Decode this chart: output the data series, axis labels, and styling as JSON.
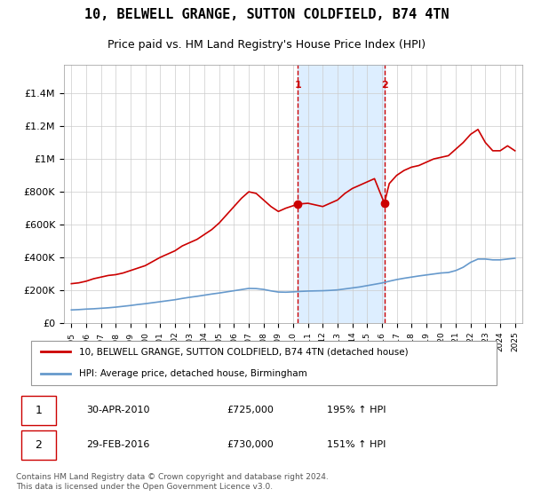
{
  "title": "10, BELWELL GRANGE, SUTTON COLDFIELD, B74 4TN",
  "subtitle": "Price paid vs. HM Land Registry's House Price Index (HPI)",
  "title_fontsize": 11,
  "subtitle_fontsize": 9,
  "background_color": "#ffffff",
  "plot_bg_color": "#ffffff",
  "grid_color": "#cccccc",
  "red_line_color": "#cc0000",
  "blue_line_color": "#6699cc",
  "highlight_bg_color": "#ddeeff",
  "dashed_line_color": "#cc0000",
  "marker1_x": 2010.33,
  "marker1_y": 725000,
  "marker2_x": 2016.17,
  "marker2_y": 730000,
  "vline1_x": 2010.33,
  "vline2_x": 2016.17,
  "ylim": [
    0,
    1500000
  ],
  "xlim": [
    1994.5,
    2025.5
  ],
  "ytick_values": [
    0,
    200000,
    400000,
    600000,
    800000,
    1000000,
    1200000,
    1400000
  ],
  "ytick_labels": [
    "£0",
    "£200K",
    "£400K",
    "£600K",
    "£800K",
    "£1M",
    "£1.2M",
    "£1.4M"
  ],
  "xtick_years": [
    1995,
    1996,
    1997,
    1998,
    1999,
    2000,
    2001,
    2002,
    2003,
    2004,
    2005,
    2006,
    2007,
    2008,
    2009,
    2010,
    2011,
    2012,
    2013,
    2014,
    2015,
    2016,
    2017,
    2018,
    2019,
    2020,
    2021,
    2022,
    2023,
    2024,
    2025
  ],
  "legend_red_label": "10, BELWELL GRANGE, SUTTON COLDFIELD, B74 4TN (detached house)",
  "legend_blue_label": "HPI: Average price, detached house, Birmingham",
  "note1_label": "1",
  "note1_date": "30-APR-2010",
  "note1_price": "£725,000",
  "note1_hpi": "195% ↑ HPI",
  "note2_label": "2",
  "note2_date": "29-FEB-2016",
  "note2_price": "£730,000",
  "note2_hpi": "151% ↑ HPI",
  "footer": "Contains HM Land Registry data © Crown copyright and database right 2024.\nThis data is licensed under the Open Government Licence v3.0.",
  "red_x": [
    1995.0,
    1995.5,
    1996.0,
    1996.5,
    1997.0,
    1997.5,
    1998.0,
    1998.5,
    1999.0,
    1999.5,
    2000.0,
    2000.5,
    2001.0,
    2001.5,
    2002.0,
    2002.5,
    2003.0,
    2003.5,
    2004.0,
    2004.5,
    2005.0,
    2005.5,
    2006.0,
    2006.5,
    2007.0,
    2007.5,
    2008.0,
    2008.5,
    2009.0,
    2009.5,
    2010.0,
    2010.33,
    2011.0,
    2011.5,
    2012.0,
    2012.5,
    2013.0,
    2013.5,
    2014.0,
    2014.5,
    2015.0,
    2015.5,
    2016.17,
    2016.5,
    2017.0,
    2017.5,
    2018.0,
    2018.5,
    2019.0,
    2019.5,
    2020.0,
    2020.5,
    2021.0,
    2021.5,
    2022.0,
    2022.5,
    2023.0,
    2023.5,
    2024.0,
    2024.5,
    2025.0
  ],
  "red_y": [
    240000,
    245000,
    255000,
    270000,
    280000,
    290000,
    295000,
    305000,
    320000,
    335000,
    350000,
    375000,
    400000,
    420000,
    440000,
    470000,
    490000,
    510000,
    540000,
    570000,
    610000,
    660000,
    710000,
    760000,
    800000,
    790000,
    750000,
    710000,
    680000,
    700000,
    715000,
    725000,
    730000,
    720000,
    710000,
    730000,
    750000,
    790000,
    820000,
    840000,
    860000,
    880000,
    730000,
    850000,
    900000,
    930000,
    950000,
    960000,
    980000,
    1000000,
    1010000,
    1020000,
    1060000,
    1100000,
    1150000,
    1180000,
    1100000,
    1050000,
    1050000,
    1080000,
    1050000
  ],
  "blue_x": [
    1995.0,
    1995.5,
    1996.0,
    1996.5,
    1997.0,
    1997.5,
    1998.0,
    1998.5,
    1999.0,
    1999.5,
    2000.0,
    2000.5,
    2001.0,
    2001.5,
    2002.0,
    2002.5,
    2003.0,
    2003.5,
    2004.0,
    2004.5,
    2005.0,
    2005.5,
    2006.0,
    2006.5,
    2007.0,
    2007.5,
    2008.0,
    2008.5,
    2009.0,
    2009.5,
    2010.0,
    2010.5,
    2011.0,
    2011.5,
    2012.0,
    2012.5,
    2013.0,
    2013.5,
    2014.0,
    2014.5,
    2015.0,
    2015.5,
    2016.0,
    2016.5,
    2017.0,
    2017.5,
    2018.0,
    2018.5,
    2019.0,
    2019.5,
    2020.0,
    2020.5,
    2021.0,
    2021.5,
    2022.0,
    2022.5,
    2023.0,
    2023.5,
    2024.0,
    2024.5,
    2025.0
  ],
  "blue_y": [
    80000,
    82000,
    85000,
    87000,
    90000,
    93000,
    97000,
    102000,
    107000,
    113000,
    118000,
    124000,
    130000,
    136000,
    142000,
    150000,
    157000,
    163000,
    170000,
    177000,
    183000,
    190000,
    197000,
    204000,
    211000,
    210000,
    205000,
    196000,
    189000,
    188000,
    190000,
    193000,
    195000,
    196000,
    197000,
    199000,
    202000,
    208000,
    214000,
    220000,
    228000,
    236000,
    244000,
    255000,
    265000,
    273000,
    280000,
    287000,
    293000,
    299000,
    305000,
    308000,
    320000,
    340000,
    370000,
    390000,
    390000,
    385000,
    385000,
    390000,
    395000
  ]
}
